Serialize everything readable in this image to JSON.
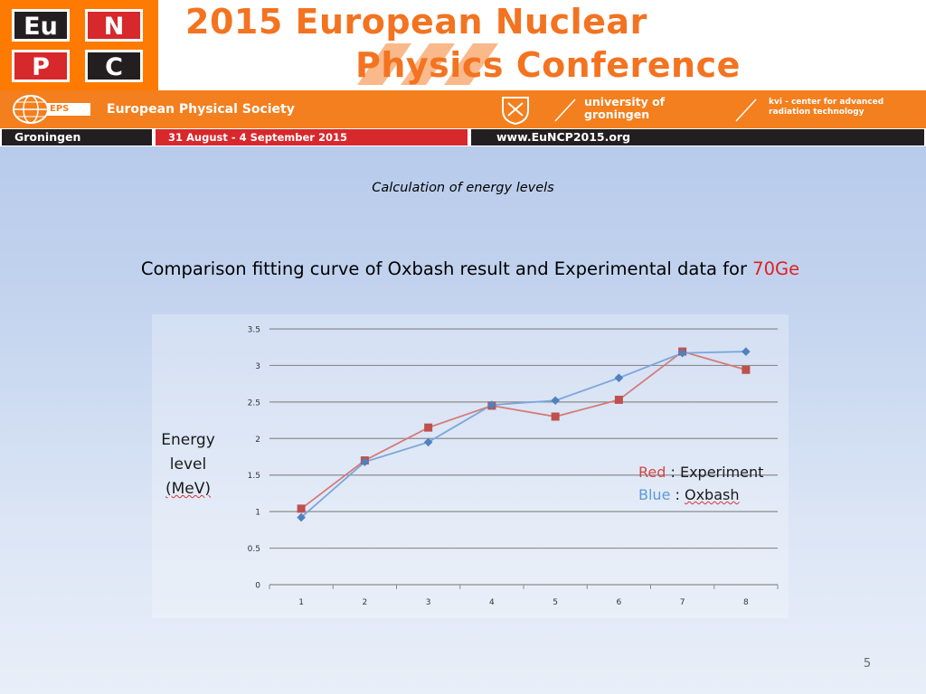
{
  "banner": {
    "logo": [
      "Eu",
      "N",
      "P",
      "C"
    ],
    "title_line1": "2015 European Nuclear",
    "title_line2": "Physics Conference",
    "eps_badge": "EPS",
    "society": "European Physical Society",
    "university": "university of groningen",
    "kvi": "kvi - center for advanced radiation technology",
    "city": "Groningen",
    "dates": "31 August - 4 September 2015",
    "url": "www.EuNCP2015.org",
    "colors": {
      "orange": "#f37321",
      "red": "#d7282c",
      "dark": "#231f20"
    }
  },
  "slide": {
    "subtitle": "Calculation of energy levels",
    "heading_main": "Comparison fitting curve of Oxbash result and Experimental data for ",
    "heading_highlight": "70Ge",
    "page_number": "5"
  },
  "chart_data": {
    "type": "line",
    "x": [
      1,
      2,
      3,
      4,
      5,
      6,
      7,
      8
    ],
    "categories": [
      "1",
      "2",
      "3",
      "4",
      "5",
      "6",
      "7",
      "8"
    ],
    "ylim": [
      0,
      3.5
    ],
    "yticks": [
      "0",
      "0.5",
      "1",
      "1.5",
      "2",
      "2.5",
      "3",
      "3.5"
    ],
    "grid": true,
    "ylabel_lines": [
      "Energy",
      "level",
      "(MeV)"
    ],
    "legend": {
      "placement": "right",
      "entries": [
        {
          "color_word": "Red",
          "sep": " : ",
          "name": "Experiment"
        },
        {
          "color_word": "Blue",
          "sep": " : ",
          "name": "Oxbash"
        }
      ]
    },
    "series": [
      {
        "name": "Experiment",
        "color": "#c0504d",
        "marker": "square",
        "values": [
          1.04,
          1.7,
          2.15,
          2.45,
          2.3,
          2.53,
          3.19,
          2.94
        ]
      },
      {
        "name": "Oxbash",
        "color": "#4f81bd",
        "marker": "diamond",
        "values": [
          0.92,
          1.68,
          1.95,
          2.46,
          2.52,
          2.83,
          3.17,
          3.19
        ]
      }
    ]
  }
}
